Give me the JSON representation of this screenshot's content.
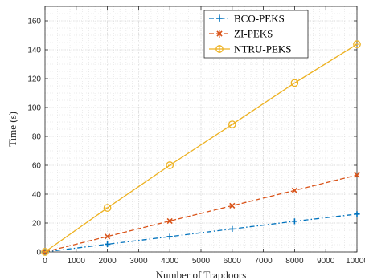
{
  "chart_data": {
    "type": "line",
    "xlabel": "Number of Trapdoors",
    "ylabel": "Time (s)",
    "xlim": [
      0,
      10000
    ],
    "ylim": [
      0,
      170
    ],
    "xticks": [
      0,
      1000,
      2000,
      3000,
      4000,
      5000,
      6000,
      7000,
      8000,
      9000,
      10000
    ],
    "yticks": [
      0,
      20,
      40,
      60,
      80,
      100,
      120,
      140,
      160
    ],
    "xtick_labels": [
      "0",
      "1000",
      "2000",
      "3000",
      "4000",
      "5000",
      "6000",
      "7000",
      "8000",
      "9000",
      "10000"
    ],
    "ytick_labels": [
      "0",
      "20",
      "40",
      "60",
      "80",
      "100",
      "120",
      "140",
      "160"
    ],
    "grid": true,
    "legend_position": "top-right",
    "series": [
      {
        "name": "BCO-PEKS",
        "color": "#0072BD",
        "line_style": "dash-dot",
        "marker": "plus",
        "x": [
          0,
          2000,
          4000,
          6000,
          8000,
          10000
        ],
        "y": [
          0,
          5.3,
          10.6,
          15.9,
          21.2,
          26.2
        ]
      },
      {
        "name": "ZI-PEKS",
        "color": "#D95319",
        "line_style": "dashed",
        "marker": "x",
        "x": [
          0,
          2000,
          4000,
          6000,
          8000,
          10000
        ],
        "y": [
          0,
          10.7,
          21.4,
          32.0,
          42.6,
          53.2
        ]
      },
      {
        "name": "NTRU-PEKS",
        "color": "#EDB120",
        "line_style": "solid",
        "marker": "circle",
        "x": [
          0,
          2000,
          4000,
          6000,
          8000,
          10000
        ],
        "y": [
          0,
          30.5,
          60.0,
          88.3,
          117.0,
          143.8
        ]
      }
    ]
  }
}
